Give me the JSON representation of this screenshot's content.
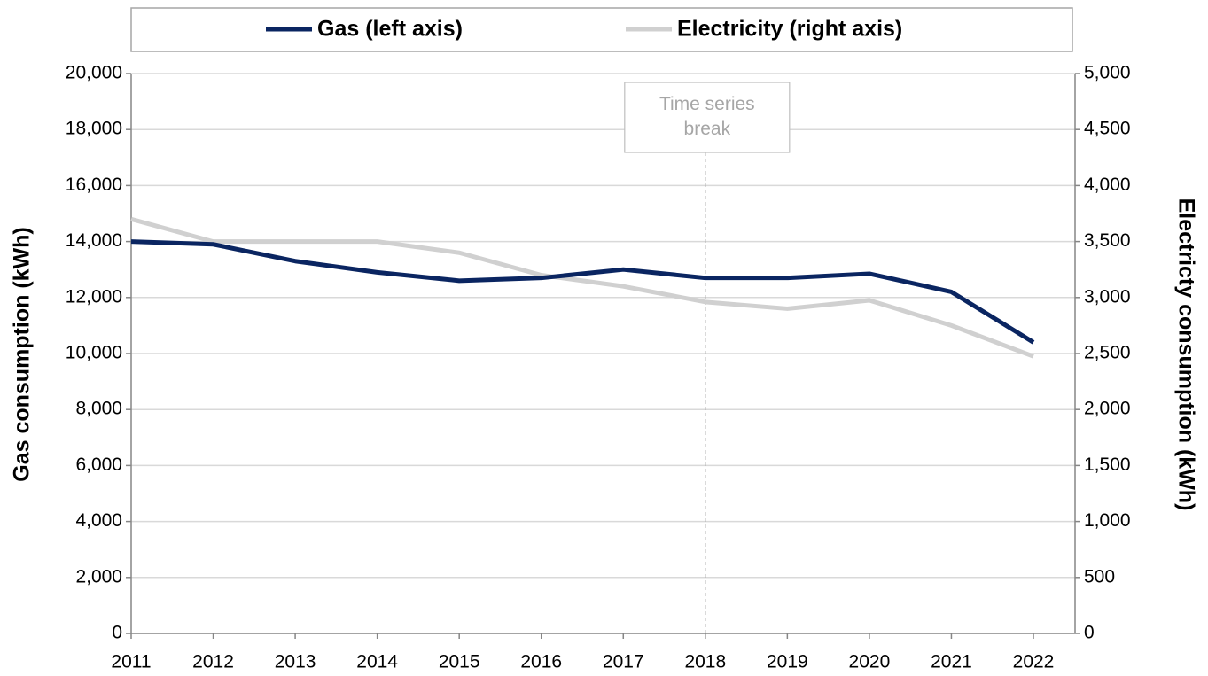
{
  "chart_data": {
    "type": "line",
    "x_label": "",
    "y_label": "Gas consumption (kWh)",
    "y2_label": "Electricty consumption (kWh)",
    "categories": [
      "2011",
      "2012",
      "2013",
      "2014",
      "2015",
      "2016",
      "2017",
      "2018",
      "2019",
      "2020",
      "2021",
      "2022"
    ],
    "series": [
      {
        "name": "Gas (left axis)",
        "color": "#0a2561",
        "values": [
          14000,
          13900,
          13300,
          12900,
          12600,
          12700,
          13000,
          12700,
          12700,
          12850,
          12200,
          10400
        ]
      },
      {
        "name": "Electricity (right axis)",
        "color": "#d0d0d0",
        "axis": "y2",
        "values": [
          3700,
          3500,
          3500,
          3500,
          3400,
          3200,
          3100,
          2960,
          2900,
          2975,
          2750,
          2475
        ]
      }
    ],
    "ylim": [
      0,
      20000
    ],
    "yticks": [
      0,
      {
        "value": 2000,
        "label": "2,000"
      },
      {
        "value": 4000,
        "label": "4,000"
      },
      {
        "value": 6000,
        "label": "6,000"
      },
      {
        "value": 8000,
        "label": "8,000"
      },
      {
        "value": 10000,
        "label": "10,000"
      },
      {
        "value": 12000,
        "label": "12,000"
      },
      {
        "value": 14000,
        "label": "14,000"
      },
      {
        "value": 16000,
        "label": "16,000"
      },
      {
        "value": 18000,
        "label": "18,000"
      },
      {
        "value": 20000,
        "label": "20,000"
      }
    ],
    "y2lim": [
      0,
      5000
    ],
    "y2ticks": [
      0,
      500,
      {
        "value": 1000,
        "label": "1,000"
      },
      {
        "value": 1500,
        "label": "1,500"
      },
      {
        "value": 2000,
        "label": "2,000"
      },
      {
        "value": 2500,
        "label": "2,500"
      },
      {
        "value": 3000,
        "label": "3,000"
      },
      {
        "value": 3500,
        "label": "3,500"
      },
      {
        "value": 4000,
        "label": "4,000"
      },
      {
        "value": 4500,
        "label": "4,500"
      },
      {
        "value": 5000,
        "label": "5,000"
      }
    ],
    "grid": true,
    "legend": "top",
    "annotation": {
      "text": "Time series break",
      "at": "2018"
    }
  }
}
